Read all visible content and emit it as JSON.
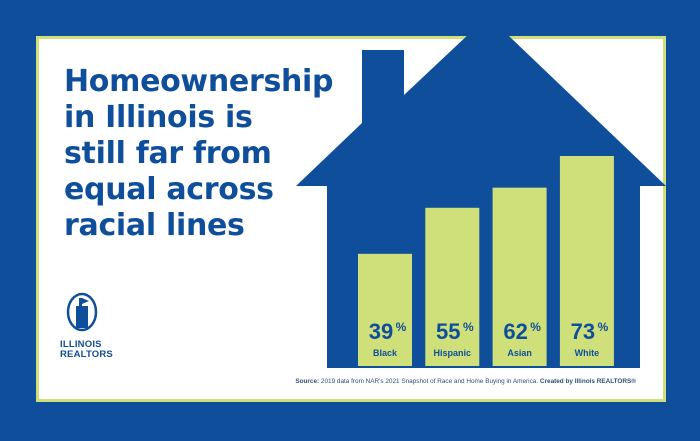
{
  "headline": [
    "Homeownership",
    "in Illinois is",
    "still far from",
    "equal across",
    "racial lines"
  ],
  "logo": {
    "line1": "ILLINOIS",
    "line2": "REALTORS"
  },
  "source": {
    "prefix": "Source:",
    "text": " 2019 data from NAR's 2021 Snapshot of Race and Home Buying in America. ",
    "credit": "Created by Illinois REALTORS®"
  },
  "colors": {
    "background": "#0f4e9a",
    "bar": "#cfe07b",
    "house": "#0f4e9a",
    "text": "#0f4e9a"
  },
  "chart_data": {
    "type": "bar",
    "categories": [
      "Black",
      "Hispanic",
      "Asian",
      "White"
    ],
    "values": [
      39,
      55,
      62,
      73
    ],
    "value_labels": [
      "39",
      "55",
      "62",
      "73"
    ],
    "unit": "%",
    "title": "",
    "xlabel": "",
    "ylabel": "",
    "ylim": [
      0,
      73
    ]
  }
}
